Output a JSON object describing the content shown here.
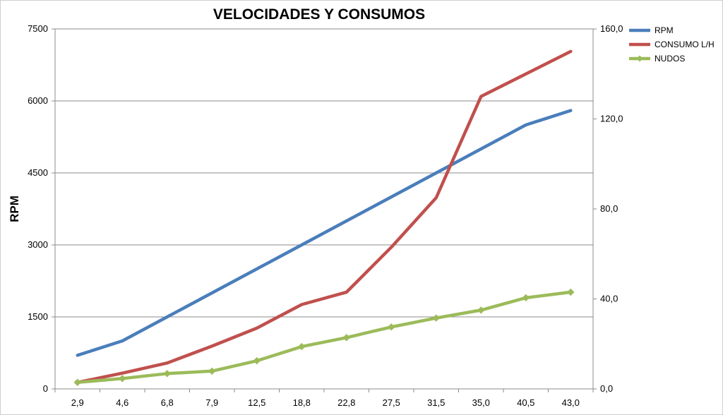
{
  "chart_data": {
    "type": "line",
    "title": "VELOCIDADES Y CONSUMOS",
    "ylabel": "RPM",
    "y2label": "",
    "categories": [
      "2,9",
      "4,6",
      "6,8",
      "7,9",
      "12,5",
      "18,8",
      "22,8",
      "27,5",
      "31,5",
      "35,0",
      "40,5",
      "43,0"
    ],
    "ylim": [
      0,
      7500
    ],
    "yticks": [
      "0",
      "1500",
      "3000",
      "4500",
      "6000",
      "7500"
    ],
    "y2lim": [
      0,
      160
    ],
    "y2ticks": [
      "0,0",
      "40,0",
      "80,0",
      "120,0",
      "160,0"
    ],
    "grid": true,
    "legend_position": "top-right",
    "series": [
      {
        "name": "RPM",
        "axis": "left",
        "color": "#4a7ebb",
        "marker": "none",
        "values": [
          700,
          1000,
          1500,
          2000,
          2500,
          3000,
          3500,
          4000,
          4500,
          5000,
          5500,
          5800
        ]
      },
      {
        "name": "CONSUMO L/H",
        "axis": "right",
        "color": "#c0504d",
        "marker": "none",
        "values": [
          2.9,
          7.0,
          11.5,
          19.0,
          27.0,
          37.5,
          43.0,
          63.0,
          85.0,
          130.0,
          140.0,
          150.0
        ]
      },
      {
        "name": "NUDOS",
        "axis": "right",
        "color": "#9bbb59",
        "marker": "diamond",
        "values": [
          2.9,
          4.6,
          6.8,
          7.9,
          12.5,
          18.8,
          22.8,
          27.5,
          31.5,
          35.0,
          40.5,
          43.0
        ]
      }
    ]
  }
}
